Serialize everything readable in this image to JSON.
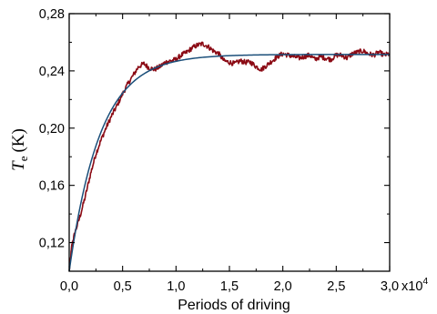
{
  "chart_data": {
    "type": "line",
    "title": "",
    "xlabel": "Periods of driving",
    "ylabel": {
      "symbol": "T",
      "subscript": "e",
      "unit": "(K)"
    },
    "xlim": [
      0,
      30000
    ],
    "ylim": [
      0.1,
      0.28
    ],
    "x_tick_labels": [
      "0,0",
      "0,5",
      "1,0",
      "1,5",
      "2,0",
      "2,5",
      "3,0"
    ],
    "x_tick_values": [
      0,
      5000,
      10000,
      15000,
      20000,
      25000,
      30000
    ],
    "x_scale_mantissa": "x10",
    "x_scale_exponent": "4",
    "y_tick_labels": [
      "0,12",
      "0,16",
      "0,20",
      "0,24",
      "0,28"
    ],
    "y_tick_values": [
      0.12,
      0.16,
      0.2,
      0.24,
      0.28
    ],
    "grid": false,
    "legend": "none",
    "series": [
      {
        "style": "noisy",
        "color": "#8b0a14",
        "x": [
          0,
          250,
          500,
          1000,
          1500,
          2000,
          2500,
          3000,
          3500,
          4000,
          4500,
          5000,
          5500,
          6000,
          6500,
          7000,
          7500,
          8000,
          8500,
          9000,
          9500,
          10000,
          10500,
          11000,
          11500,
          12000,
          12500,
          13000,
          13500,
          14000,
          14500,
          15000,
          15500,
          16000,
          16500,
          17000,
          17500,
          18000,
          18500,
          19000,
          19500,
          20000,
          20500,
          21000,
          21500,
          22000,
          22500,
          23000,
          23500,
          24000,
          24500,
          25000,
          25500,
          26000,
          26500,
          27000,
          27500,
          28000,
          28500,
          29000,
          29500,
          30000
        ],
        "values": [
          0.1,
          0.118,
          0.126,
          0.138,
          0.152,
          0.168,
          0.182,
          0.192,
          0.201,
          0.209,
          0.216,
          0.224,
          0.231,
          0.237,
          0.243,
          0.245,
          0.242,
          0.241,
          0.243,
          0.246,
          0.247,
          0.248,
          0.251,
          0.253,
          0.256,
          0.258,
          0.259,
          0.257,
          0.254,
          0.252,
          0.247,
          0.246,
          0.245,
          0.247,
          0.246,
          0.246,
          0.243,
          0.241,
          0.244,
          0.247,
          0.25,
          0.252,
          0.251,
          0.25,
          0.249,
          0.25,
          0.251,
          0.248,
          0.25,
          0.249,
          0.248,
          0.251,
          0.251,
          0.249,
          0.252,
          0.253,
          0.254,
          0.252,
          0.251,
          0.253,
          0.251,
          0.252
        ]
      },
      {
        "style": "fit",
        "color": "#1b4f7a",
        "model": "exponential",
        "y0": 0.1,
        "y_inf": 0.2515,
        "tau": 2900
      }
    ]
  }
}
